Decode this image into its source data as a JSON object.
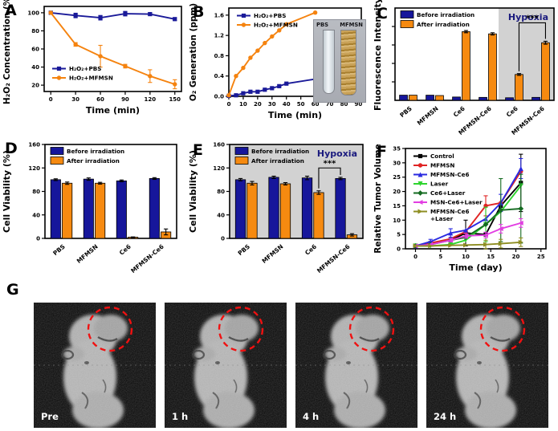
{
  "panels": {
    "A": "A",
    "B": "B",
    "C": "C",
    "D": "D",
    "E": "E",
    "F": "F",
    "G": "G"
  },
  "colors": {
    "navy_series": "#1a1a99",
    "orange_series": "#f5830f",
    "bar_blue": "#16169b",
    "bar_orange": "#f68a10",
    "hypoxia_text": "#1b1b7e",
    "hypoxia_bg": "#d2d2d2",
    "red_circle": "#f01111",
    "f_control": "#000000",
    "f_mfmsn": "#e02424",
    "f_mfmsn_ce6": "#2a2ae0",
    "f_laser": "#2fd42f",
    "f_ce6_laser": "#156b21",
    "f_msn_ce6_laser": "#e23ee2",
    "f_mfmsn_ce6_laser": "#8e8e22"
  },
  "chart_data": [
    {
      "panel": "A",
      "type": "line",
      "xlabel": "Time (min)",
      "ylabel": "H₂O₂ Concentration (%)",
      "xlim": [
        -8,
        158
      ],
      "ylim": [
        13,
        107
      ],
      "xticks": [
        0,
        30,
        60,
        90,
        120,
        150
      ],
      "yticks": [
        20,
        40,
        60,
        80,
        100
      ],
      "legend": {
        "pos": "bottom-left"
      },
      "series": [
        {
          "name": "H₂O₂+PBS",
          "color": "navy_series",
          "marker": "square",
          "x": [
            0,
            30,
            60,
            90,
            120,
            150
          ],
          "y": [
            100,
            97,
            94.5,
            99,
            98.5,
            93
          ],
          "err": [
            1,
            2.5,
            2.5,
            2.5,
            1.5,
            1.5
          ]
        },
        {
          "name": "H₂O₂+MFMSN",
          "color": "orange_series",
          "marker": "circle",
          "x": [
            0,
            30,
            60,
            90,
            120,
            150
          ],
          "y": [
            100,
            65,
            52,
            41,
            30,
            21
          ],
          "err": [
            1,
            2,
            12,
            2,
            7,
            5
          ]
        }
      ]
    },
    {
      "panel": "B",
      "type": "line",
      "xlabel": "Time (min)",
      "ylabel": "O₂ Generation (ppm)",
      "xlim": [
        0,
        92
      ],
      "ylim": [
        0,
        1.74
      ],
      "xticks": [
        0,
        10,
        20,
        30,
        40,
        50,
        60,
        70,
        80,
        90
      ],
      "yticks": [
        0,
        0.4,
        0.8,
        1.2,
        1.6
      ],
      "ytick_labels": [
        "0.0",
        "0.4",
        "0.8",
        "1.2",
        "1.6"
      ],
      "legend": {
        "pos": "top-left"
      },
      "inset": {
        "labels": [
          "PBS",
          "MFMSN"
        ]
      },
      "series": [
        {
          "name": "H₂O₂+PBS",
          "color": "navy_series",
          "marker": "square",
          "x": [
            0,
            5,
            10,
            15,
            20,
            25,
            30,
            35,
            40,
            60
          ],
          "y": [
            0.01,
            0.02,
            0.06,
            0.09,
            0.09,
            0.13,
            0.16,
            0.2,
            0.25,
            0.34
          ]
        },
        {
          "name": "H₂O₂+MFMSN",
          "color": "orange_series",
          "marker": "circle",
          "x": [
            0,
            5,
            10,
            15,
            20,
            25,
            30,
            35,
            40,
            60
          ],
          "y": [
            0.02,
            0.4,
            0.56,
            0.76,
            0.9,
            1.05,
            1.18,
            1.3,
            1.42,
            1.65
          ]
        }
      ]
    },
    {
      "panel": "C",
      "type": "bar",
      "ylabel": "Fluorescence Intensity",
      "ylim": [
        0,
        1.25
      ],
      "yticks": [
        0.25,
        0.5,
        0.75,
        1.0
      ],
      "ytick_labels": [
        "",
        "",
        "",
        ""
      ],
      "categories": [
        "PBS",
        "MFMSN",
        "Ce6",
        "MFMSN-Ce6",
        "Ce6",
        "MFMSN-Ce6"
      ],
      "series": [
        {
          "name": "Before irradiation",
          "color": "bar_blue",
          "values": [
            0.07,
            0.07,
            0.045,
            0.04,
            0.035,
            0.04
          ],
          "err": [
            0,
            0,
            0,
            0,
            0,
            0
          ]
        },
        {
          "name": "After irradiation",
          "color": "bar_orange",
          "values": [
            0.07,
            0.065,
            0.93,
            0.9,
            0.35,
            0.78
          ],
          "err": [
            0,
            0,
            0.015,
            0.015,
            0.012,
            0.02
          ]
        }
      ],
      "hypoxia_region": {
        "from_category": 4,
        "label": "Hypoxia"
      },
      "significance": {
        "label": "***",
        "from_cat": 4,
        "from_series": 1,
        "to_cat": 5,
        "to_series": 1,
        "y": 1.05
      }
    },
    {
      "panel": "D",
      "type": "bar",
      "ylabel": "Cell Viability (%)",
      "ylim": [
        0,
        160
      ],
      "yticks": [
        0,
        40,
        80,
        120,
        160
      ],
      "categories": [
        "PBS",
        "MFMSN",
        "Ce6",
        "MFMSN-Ce6"
      ],
      "series": [
        {
          "name": "Before irradiation",
          "color": "bar_blue",
          "values": [
            100,
            101,
            98,
            102
          ],
          "err": [
            1.5,
            2,
            1.5,
            1.5
          ]
        },
        {
          "name": "After irradiation",
          "color": "bar_orange",
          "values": [
            94,
            94,
            2,
            11
          ],
          "err": [
            2,
            1.5,
            0.5,
            5
          ]
        }
      ]
    },
    {
      "panel": "E",
      "type": "bar",
      "ylabel": "Cell Viability (%)",
      "ylim": [
        0,
        160
      ],
      "yticks": [
        0,
        40,
        80,
        120,
        160
      ],
      "categories": [
        "PBS",
        "MFMSN",
        "Ce6",
        "MFMSN-Ce6"
      ],
      "series": [
        {
          "name": "Before irradiation",
          "color": "bar_blue",
          "values": [
            100,
            104,
            103,
            102
          ],
          "err": [
            2,
            2,
            3,
            2
          ]
        },
        {
          "name": "After irradiation",
          "color": "bar_orange",
          "values": [
            94,
            93,
            78,
            6
          ],
          "err": [
            3,
            2,
            3,
            2
          ]
        }
      ],
      "hypoxia_region": {
        "full": true,
        "label": "Hypoxia"
      },
      "significance": {
        "label": "***",
        "from_cat": 2,
        "from_series": 1,
        "to_cat": 3,
        "to_series": 0,
        "y": 120
      }
    },
    {
      "panel": "F",
      "type": "line",
      "xlabel": "Time (day)",
      "ylabel": "Relative Tumor Volume",
      "xlim": [
        -2,
        26
      ],
      "ylim": [
        0,
        35
      ],
      "xticks": [
        0,
        5,
        10,
        15,
        20,
        25
      ],
      "yticks": [
        0,
        5,
        10,
        15,
        20,
        25,
        30,
        35
      ],
      "legend": {
        "pos": "top-left"
      },
      "series": [
        {
          "name": "Control",
          "color": "f_control",
          "marker": "square",
          "x": [
            0,
            3,
            7,
            10,
            14,
            17,
            21
          ],
          "y": [
            1,
            2,
            3,
            5.5,
            5,
            15,
            23
          ],
          "err": [
            0,
            0,
            0,
            4.5,
            0,
            0,
            10
          ]
        },
        {
          "name": "MFMSN",
          "color": "f_mfmsn",
          "marker": "circle",
          "x": [
            0,
            3,
            7,
            10,
            14,
            17,
            21
          ],
          "y": [
            1,
            2,
            3.5,
            6,
            15,
            16,
            27
          ],
          "err": [
            0,
            0,
            0,
            0,
            3.5,
            0,
            0
          ]
        },
        {
          "name": "MFMSN-Ce6",
          "color": "f_mfmsn_ce6",
          "marker": "triangle",
          "x": [
            0,
            3,
            7,
            10,
            14,
            17,
            21
          ],
          "y": [
            1,
            2.5,
            5.5,
            6.5,
            10.5,
            16,
            28
          ],
          "err": [
            0,
            0.8,
            1.5,
            0,
            0,
            3,
            3.5
          ]
        },
        {
          "name": "Laser",
          "color": "f_laser",
          "marker": "triangle-down",
          "x": [
            0,
            3,
            7,
            10,
            14,
            17,
            21
          ],
          "y": [
            1,
            1,
            1.5,
            3,
            8.5,
            13,
            22
          ],
          "err": [
            0,
            0,
            0,
            0,
            6,
            0,
            0
          ]
        },
        {
          "name": "Ce6+Laser",
          "color": "f_ce6_laser",
          "marker": "diamond",
          "x": [
            0,
            3,
            7,
            10,
            14,
            17,
            21
          ],
          "y": [
            1,
            1.5,
            3,
            4,
            8.5,
            13.5,
            14
          ],
          "err": [
            0,
            0,
            0,
            0,
            0,
            11,
            12
          ]
        },
        {
          "name": "MSN-Ce6+Laser",
          "color": "f_msn_ce6_laser",
          "marker": "triangle-left",
          "x": [
            0,
            3,
            7,
            10,
            14,
            17,
            21
          ],
          "y": [
            1,
            1.5,
            3,
            4.5,
            4.8,
            7,
            9
          ],
          "err": [
            0,
            0,
            0.6,
            0.8,
            1,
            1.5,
            1.5
          ]
        },
        {
          "name": "MFMSN-Ce6|+Laser",
          "color": "f_mfmsn_ce6_laser",
          "marker": "triangle-right",
          "x": [
            0,
            3,
            7,
            10,
            14,
            17,
            21
          ],
          "y": [
            1,
            1,
            1.2,
            1.3,
            1.5,
            1.8,
            2.3
          ],
          "err": [
            0,
            0,
            0,
            0,
            1.5,
            1.5,
            1.5
          ]
        }
      ]
    }
  ],
  "panel_g": {
    "images": [
      {
        "label": "Pre"
      },
      {
        "label": "1 h"
      },
      {
        "label": "4 h"
      },
      {
        "label": "24 h"
      }
    ]
  }
}
